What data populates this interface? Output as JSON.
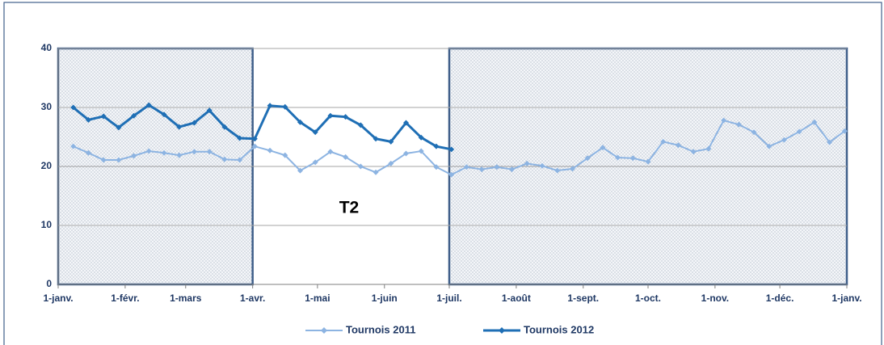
{
  "chart_data": {
    "type": "line",
    "annotation": "T2",
    "xlim": [
      0,
      365
    ],
    "xticks": [
      {
        "value": 0,
        "label": "1-janv."
      },
      {
        "value": 31,
        "label": "1-févr."
      },
      {
        "value": 59,
        "label": "1-mars"
      },
      {
        "value": 90,
        "label": "1-avr."
      },
      {
        "value": 120,
        "label": "1-mai"
      },
      {
        "value": 151,
        "label": "1-juin"
      },
      {
        "value": 181,
        "label": "1-juil."
      },
      {
        "value": 212,
        "label": "1-août"
      },
      {
        "value": 243,
        "label": "1-sept."
      },
      {
        "value": 273,
        "label": "1-oct."
      },
      {
        "value": 304,
        "label": "1-nov."
      },
      {
        "value": 334,
        "label": "1-déc."
      },
      {
        "value": 365,
        "label": "1-janv."
      }
    ],
    "ylim": [
      0,
      40
    ],
    "yticks": [
      0,
      10,
      20,
      30,
      40
    ],
    "grid": true,
    "legend": "bottom",
    "series": [
      {
        "name": "Tournois 2011",
        "color": "#8db4e2",
        "x": [
          7,
          14,
          21,
          28,
          35,
          42,
          49,
          56,
          63,
          70,
          77,
          84,
          91,
          98,
          105,
          112,
          119,
          126,
          133,
          140,
          147,
          154,
          161,
          168,
          175,
          182,
          189,
          196,
          203,
          210,
          217,
          224,
          231,
          238,
          245,
          252,
          259,
          266,
          273,
          280,
          287,
          294,
          301,
          308,
          315,
          322,
          329,
          336,
          343,
          350,
          357,
          364
        ],
        "values": [
          23.4,
          22.3,
          21.1,
          21.1,
          21.8,
          22.6,
          22.3,
          21.9,
          22.5,
          22.5,
          21.2,
          21.1,
          23.4,
          22.7,
          21.9,
          19.3,
          20.7,
          22.5,
          21.6,
          20.0,
          19.0,
          20.5,
          22.2,
          22.6,
          19.9,
          18.6,
          19.9,
          19.5,
          19.9,
          19.5,
          20.5,
          20.1,
          19.3,
          19.6,
          21.4,
          23.2,
          21.5,
          21.4,
          20.8,
          24.2,
          23.6,
          22.5,
          23.0,
          27.8,
          27.1,
          25.8,
          23.4,
          24.5,
          25.9,
          27.5,
          24.1,
          26.0
        ]
      },
      {
        "name": "Tournois 2012",
        "color": "#1f6fb5",
        "x": [
          7,
          14,
          21,
          28,
          35,
          42,
          49,
          56,
          63,
          70,
          77,
          84,
          91,
          98,
          105,
          112,
          119,
          126,
          133,
          140,
          147,
          154,
          161,
          168,
          175,
          182
        ],
        "values": [
          30.0,
          27.9,
          28.5,
          26.6,
          28.6,
          30.4,
          28.8,
          26.7,
          27.4,
          29.5,
          26.7,
          24.8,
          24.7,
          30.3,
          30.1,
          27.5,
          25.8,
          28.6,
          28.4,
          27.0,
          24.7,
          24.2,
          27.4,
          24.9,
          23.4,
          22.9
        ]
      }
    ]
  }
}
